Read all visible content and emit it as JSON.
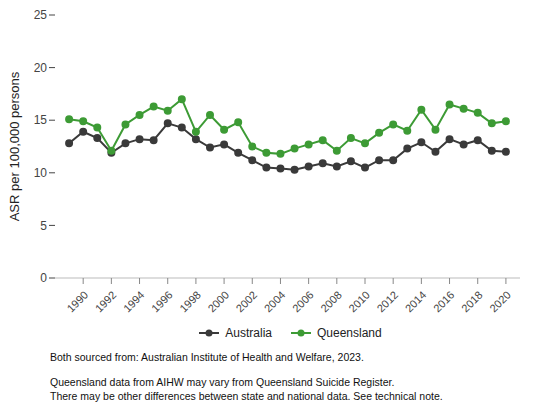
{
  "chart_data": {
    "type": "line",
    "y_label": "ASR per 100,000 persons",
    "x": [
      1989,
      1990,
      1991,
      1992,
      1993,
      1994,
      1995,
      1996,
      1997,
      1998,
      1999,
      2000,
      2001,
      2002,
      2003,
      2004,
      2005,
      2006,
      2007,
      2008,
      2009,
      2010,
      2011,
      2012,
      2013,
      2014,
      2015,
      2016,
      2017,
      2018,
      2019,
      2020
    ],
    "series": [
      {
        "name": "Australia",
        "color": "#3a3a3a",
        "marker": "circle",
        "values": [
          12.8,
          13.9,
          13.3,
          11.9,
          12.8,
          13.2,
          13.1,
          14.7,
          14.3,
          13.2,
          12.4,
          12.7,
          11.9,
          11.2,
          10.5,
          10.4,
          10.3,
          10.6,
          10.9,
          10.6,
          11.1,
          10.5,
          11.2,
          11.2,
          12.3,
          12.9,
          12.0,
          13.2,
          12.7,
          13.1,
          12.1,
          12.0
        ]
      },
      {
        "name": "Queensland",
        "color": "#3d9b35",
        "marker": "circle",
        "values": [
          15.1,
          14.9,
          14.3,
          12.1,
          14.6,
          15.5,
          16.3,
          15.9,
          17.0,
          13.9,
          15.5,
          14.1,
          14.8,
          12.5,
          11.9,
          11.8,
          12.3,
          12.7,
          13.1,
          12.1,
          13.3,
          12.8,
          13.8,
          14.6,
          14.0,
          16.0,
          14.1,
          16.5,
          16.1,
          15.7,
          14.7,
          14.9
        ]
      }
    ],
    "xlim": [
      1988,
      2021
    ],
    "xticks": [
      1990,
      1992,
      1994,
      1996,
      1998,
      2000,
      2002,
      2004,
      2006,
      2008,
      2010,
      2012,
      2014,
      2016,
      2018,
      2020
    ],
    "ylim": [
      0,
      25
    ],
    "yticks": [
      0,
      5,
      10,
      15,
      20,
      25
    ],
    "grid": false,
    "legend": "bottom",
    "notes": [
      "Both sourced from: Australian Institute of Health and Welfare, 2023.",
      "Queensland data from AIHW may vary from Queensland Suicide Register.",
      "There may be other differences between state and national data. See technical note."
    ]
  }
}
